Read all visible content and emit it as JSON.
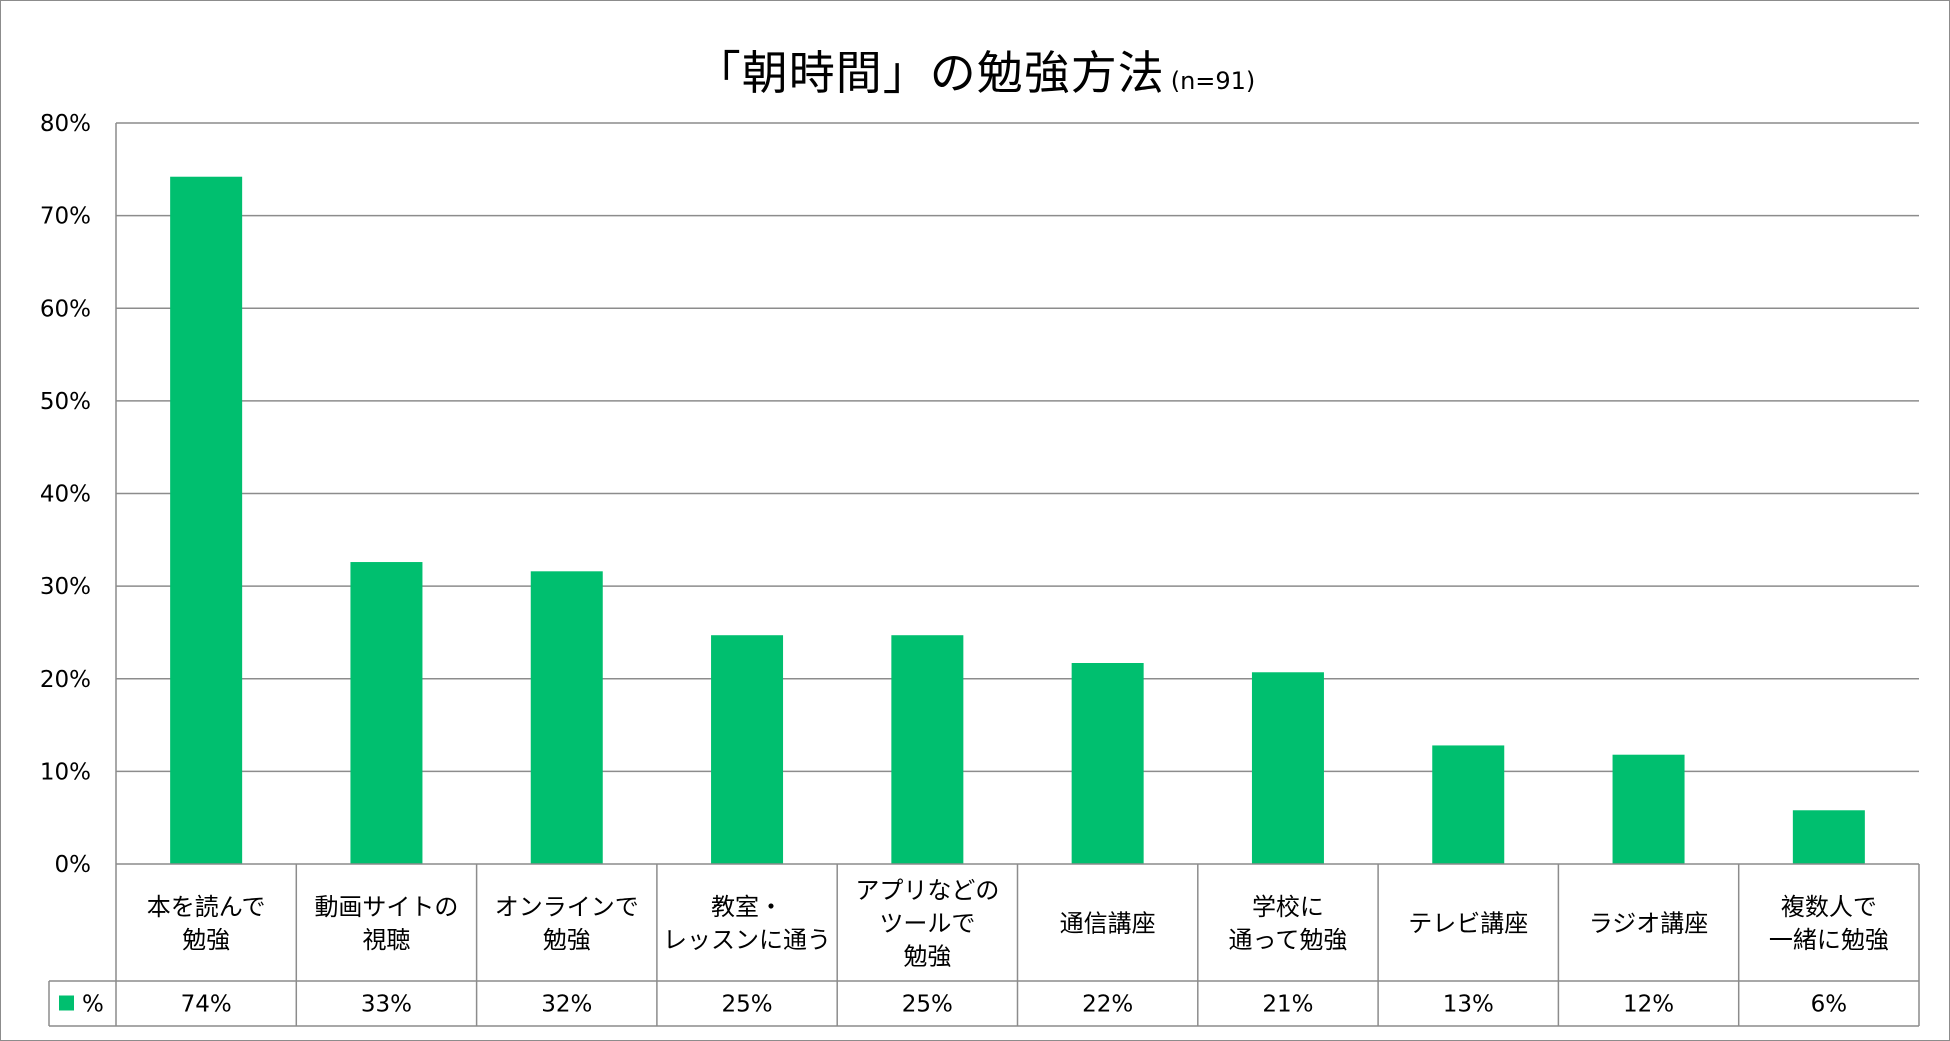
{
  "chart_data": {
    "type": "bar",
    "title": "「朝時間」の勉強方法",
    "subtitle": "(n=91)",
    "categories": [
      [
        "本を読んで",
        "勉強"
      ],
      [
        "動画サイトの",
        "視聴"
      ],
      [
        "オンラインで",
        "勉強"
      ],
      [
        "教室・",
        "レッスンに通う"
      ],
      [
        "アプリなどの",
        "ツールで",
        "勉強"
      ],
      [
        "通信講座"
      ],
      [
        "学校に",
        "通って勉強"
      ],
      [
        "テレビ講座"
      ],
      [
        "ラジオ講座"
      ],
      [
        "複数人で",
        "一緒に勉強"
      ]
    ],
    "series": [
      {
        "name": "%",
        "values": [
          74.2,
          32.6,
          31.6,
          24.7,
          24.7,
          21.7,
          20.7,
          12.8,
          11.8,
          5.8
        ],
        "labels": [
          "74%",
          "33%",
          "32%",
          "25%",
          "25%",
          "22%",
          "21%",
          "13%",
          "12%",
          "6%"
        ],
        "color": "#00bf6f"
      }
    ],
    "y_ticks": [
      "0%",
      "10%",
      "20%",
      "30%",
      "40%",
      "50%",
      "60%",
      "70%",
      "80%"
    ],
    "ylim": [
      0,
      80
    ],
    "grid": true,
    "legend": "data-table-left",
    "gridline_color": "#8c8c8c"
  }
}
